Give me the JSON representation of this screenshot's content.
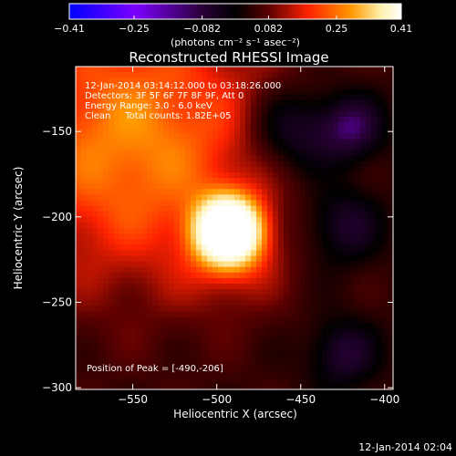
{
  "chart_data": {
    "type": "heatmap",
    "title": "Reconstructed RHESSI Image",
    "xlabel": "Heliocentric X (arcsec)",
    "ylabel": "Heliocentric Y (arcsec)",
    "xlim": [
      -584,
      -395
    ],
    "ylim": [
      -301,
      -112
    ],
    "x_ticks": [
      -550,
      -500,
      -450,
      -400
    ],
    "y_ticks": [
      -150,
      -200,
      -250,
      -300
    ],
    "colorbar": {
      "min": -0.41,
      "max": 0.41,
      "ticks": [
        -0.41,
        -0.25,
        -0.082,
        0.082,
        0.25,
        0.41
      ],
      "tick_labels": [
        "-0.41",
        "-0.25",
        "-0.082",
        "0.082",
        "0.25",
        "0.41"
      ],
      "unit_label": "(photons cm⁻² s⁻¹ asec⁻²)"
    },
    "annotations": [
      "12-Jan-2014 03:14:12.000 to 03:18:26.000",
      "Detectors: 3F 5F 6F 7F 8F 9F, Att 0",
      "Energy Range: 3.0 - 6.0 keV",
      "Clean     Total counts: 1.82E+05"
    ],
    "peak_label": "Position of Peak = [-490,-206]",
    "peak": {
      "x": -490,
      "y": -206,
      "value": 0.41
    },
    "sources": [
      {
        "x": -493,
        "y": -208,
        "sigma": 13,
        "amp": 0.62
      },
      {
        "x": -550,
        "y": -155,
        "sigma": 60,
        "amp": 0.24
      },
      {
        "x": -490,
        "y": -226,
        "sigma": 20,
        "amp": 0.08
      },
      {
        "x": -455,
        "y": -150,
        "sigma": 18,
        "amp": -0.16
      },
      {
        "x": -420,
        "y": -148,
        "sigma": 14,
        "amp": -0.18
      },
      {
        "x": -425,
        "y": -205,
        "sigma": 16,
        "amp": -0.14
      },
      {
        "x": -425,
        "y": -280,
        "sigma": 14,
        "amp": -0.14
      }
    ],
    "background": -0.05,
    "colormap": [
      "#0000ff",
      "#7d00ff",
      "#2a0038",
      "#000000",
      "#5a0000",
      "#ff2200",
      "#ff9900",
      "#fff2b0",
      "#ffffff"
    ],
    "grid": false
  },
  "footer": {
    "timestamp": "12-Jan-2014 02:04"
  }
}
